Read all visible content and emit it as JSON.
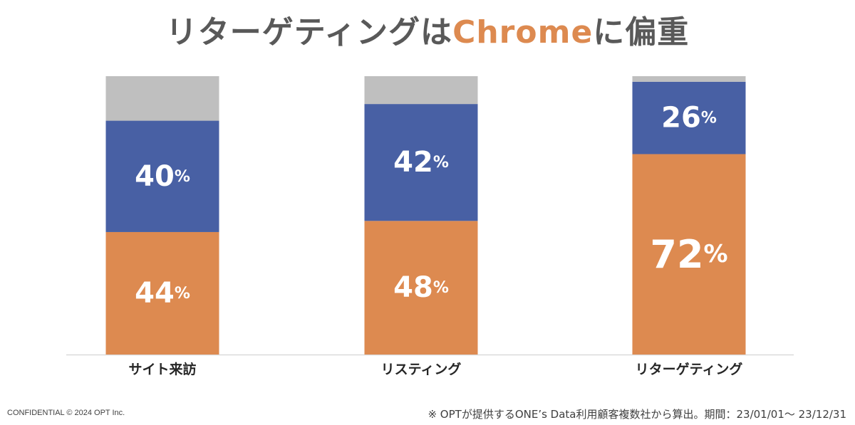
{
  "header": {
    "title_prefix": "リターゲティングは",
    "title_accent": "Chrome",
    "title_suffix": "に偏重"
  },
  "chart_data": {
    "type": "bar",
    "stacked": true,
    "categories": [
      "サイト来訪",
      "リスティング",
      "リターゲティング"
    ],
    "series": [
      {
        "values": [
          44,
          48,
          72
        ],
        "color": "#dd8a50"
      },
      {
        "values": [
          40,
          42,
          26
        ],
        "color": "#4860a4"
      },
      {
        "values": [
          16,
          10,
          2
        ],
        "color": "#bfbfbf"
      }
    ],
    "data_labels": [
      {
        "number": [
          "44",
          "48",
          "72"
        ],
        "unit": "%"
      },
      {
        "number": [
          "40",
          "42",
          "26"
        ],
        "unit": "%"
      }
    ],
    "ylim": [
      0,
      100
    ],
    "grid": false,
    "legend": "none"
  },
  "colors": {
    "accent": "#dd8a50",
    "blue": "#4860a4",
    "gray": "#bfbfbf",
    "title": "#595959",
    "axis": "#d9d9d9"
  },
  "footer": {
    "left": "CONFIDENTIAL  © 2024 OPT Inc.",
    "right": "※ OPTが提供するONE’s Data利用顧客複数社から算出。期間：23/01/01～ 23/12/31"
  }
}
